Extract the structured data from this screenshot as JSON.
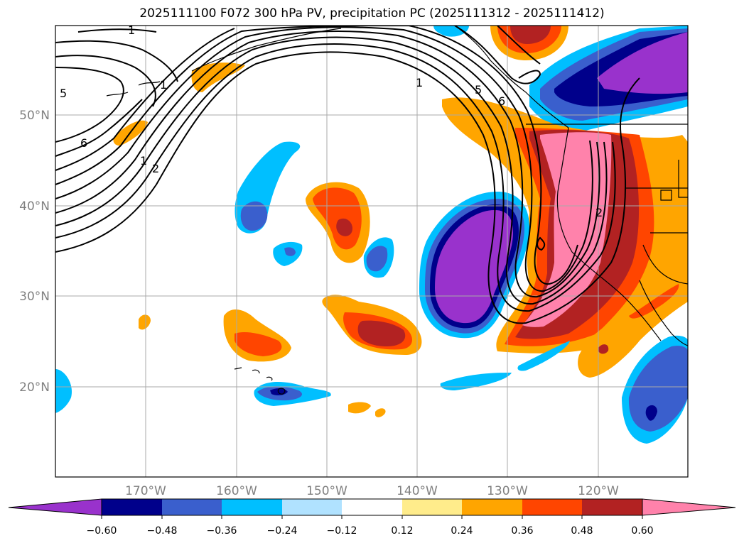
{
  "title": "2025111100 F072 300 hPa PV, precipitation PC (2025111312 - 2025111412)",
  "map": {
    "lat_labels": [
      "50°N",
      "40°N",
      "30°N",
      "20°N"
    ],
    "lon_labels": [
      "170°W",
      "160°W",
      "150°W",
      "140°W",
      "130°W",
      "120°W"
    ],
    "pv_contour_labels": [
      "1",
      "5",
      "6",
      "1",
      "2",
      "1",
      "5",
      "6",
      "1",
      "2"
    ]
  },
  "colorbar": {
    "ticks": [
      "−0.60",
      "−0.48",
      "−0.36",
      "−0.24",
      "−0.12",
      "0.12",
      "0.24",
      "0.36",
      "0.48",
      "0.60"
    ],
    "colors": [
      "#9932cc",
      "#00008b",
      "#3a5fcd",
      "#00bfff",
      "#b0e2ff",
      "#ffffff",
      "#ffec8b",
      "#ffa500",
      "#ff4500",
      "#b22222",
      "#ff82ab"
    ]
  }
}
